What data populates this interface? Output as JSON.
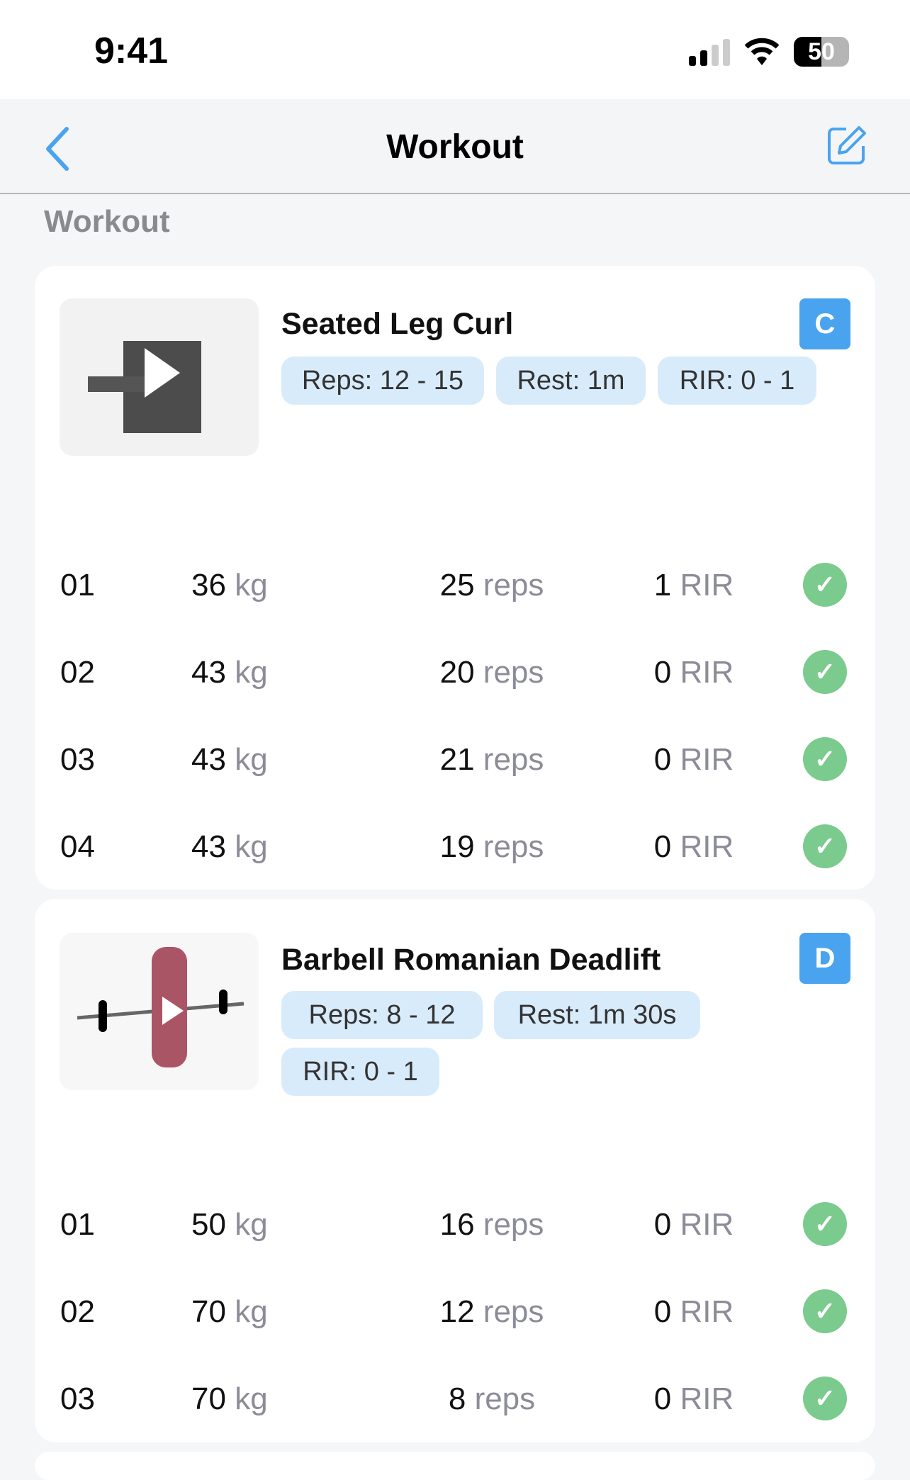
{
  "status_bar": {
    "time": "9:41",
    "battery": "50"
  },
  "nav": {
    "title": "Workout"
  },
  "section_label": "Workout",
  "colors": {
    "accent": "#4aa3ef",
    "chip": "#d8ebfb",
    "check": "#7acb8d"
  },
  "exercises": [
    {
      "name": "Seated Leg Curl",
      "badge": "C",
      "chips": [
        "Reps: 12 - 15",
        "Rest: 1m",
        "RIR: 0 - 1"
      ],
      "sets": [
        {
          "set": "01",
          "weight": "36",
          "weight_unit": "kg",
          "reps": "25",
          "reps_unit": "reps",
          "rir": "1",
          "rir_unit": "RIR",
          "done": true
        },
        {
          "set": "02",
          "weight": "43",
          "weight_unit": "kg",
          "reps": "20",
          "reps_unit": "reps",
          "rir": "0",
          "rir_unit": "RIR",
          "done": true
        },
        {
          "set": "03",
          "weight": "43",
          "weight_unit": "kg",
          "reps": "21",
          "reps_unit": "reps",
          "rir": "0",
          "rir_unit": "RIR",
          "done": true
        },
        {
          "set": "04",
          "weight": "43",
          "weight_unit": "kg",
          "reps": "19",
          "reps_unit": "reps",
          "rir": "0",
          "rir_unit": "RIR",
          "done": true
        }
      ]
    },
    {
      "name": "Barbell Romanian Deadlift",
      "badge": "D",
      "chips": [
        "Reps: 8 - 12",
        "Rest: 1m 30s",
        "RIR: 0 - 1"
      ],
      "sets": [
        {
          "set": "01",
          "weight": "50",
          "weight_unit": "kg",
          "reps": "16",
          "reps_unit": "reps",
          "rir": "0",
          "rir_unit": "RIR",
          "done": true
        },
        {
          "set": "02",
          "weight": "70",
          "weight_unit": "kg",
          "reps": "12",
          "reps_unit": "reps",
          "rir": "0",
          "rir_unit": "RIR",
          "done": true
        },
        {
          "set": "03",
          "weight": "70",
          "weight_unit": "kg",
          "reps": "8",
          "reps_unit": "reps",
          "rir": "0",
          "rir_unit": "RIR",
          "done": true
        }
      ]
    }
  ]
}
